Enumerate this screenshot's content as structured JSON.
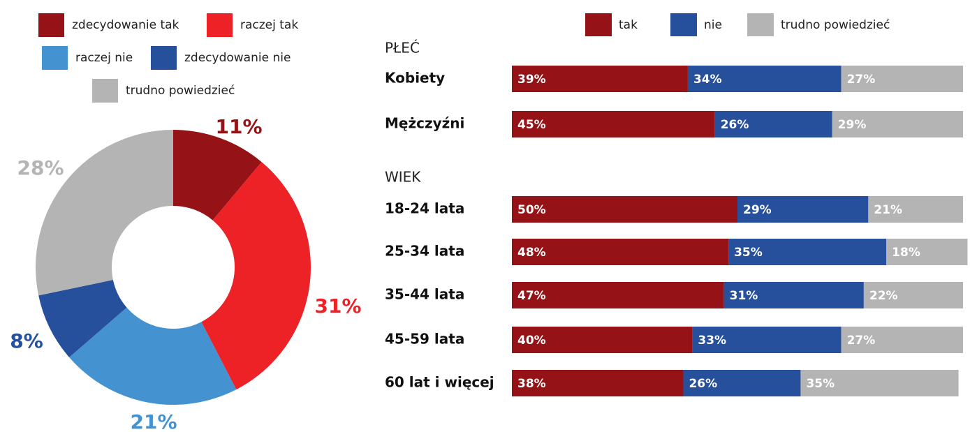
{
  "chart_data": [
    {
      "type": "donut",
      "categories": [
        "zdecydowanie tak",
        "raczej tak",
        "raczej nie",
        "zdecydowanie nie",
        "trudno powiedzieć"
      ],
      "values": [
        11,
        31,
        21,
        8,
        28
      ],
      "value_labels": [
        "11%",
        "31%",
        "21%",
        "8%",
        "28%"
      ],
      "colors": [
        "#951316",
        "#ec2227",
        "#4592d0",
        "#264f9c",
        "#b4b4b4"
      ]
    },
    {
      "type": "stacked-bar-horizontal",
      "groups": [
        {
          "name": "PŁEĆ",
          "categories": [
            "Kobiety",
            "Mężczyźni"
          ]
        },
        {
          "name": "WIEK",
          "categories": [
            "18-24 lata",
            "25-34 lata",
            "35-44 lata",
            "45-59 lata",
            "60 lat i więcej"
          ]
        }
      ],
      "series": [
        {
          "name": "tak",
          "color": "#951316",
          "values": [
            39,
            45,
            50,
            48,
            47,
            40,
            38
          ],
          "value_labels": [
            "39%",
            "45%",
            "50%",
            "48%",
            "47%",
            "40%",
            "38%"
          ]
        },
        {
          "name": "nie",
          "color": "#264f9c",
          "values": [
            34,
            26,
            29,
            35,
            31,
            33,
            26
          ],
          "value_labels": [
            "34%",
            "26%",
            "29%",
            "35%",
            "31%",
            "33%",
            "26%"
          ]
        },
        {
          "name": "trudno powiedzieć",
          "color": "#b4b4b4",
          "values": [
            27,
            29,
            21,
            18,
            22,
            27,
            35
          ],
          "value_labels": [
            "27%",
            "29%",
            "21%",
            "18%",
            "22%",
            "27%",
            "35%"
          ]
        }
      ]
    }
  ]
}
